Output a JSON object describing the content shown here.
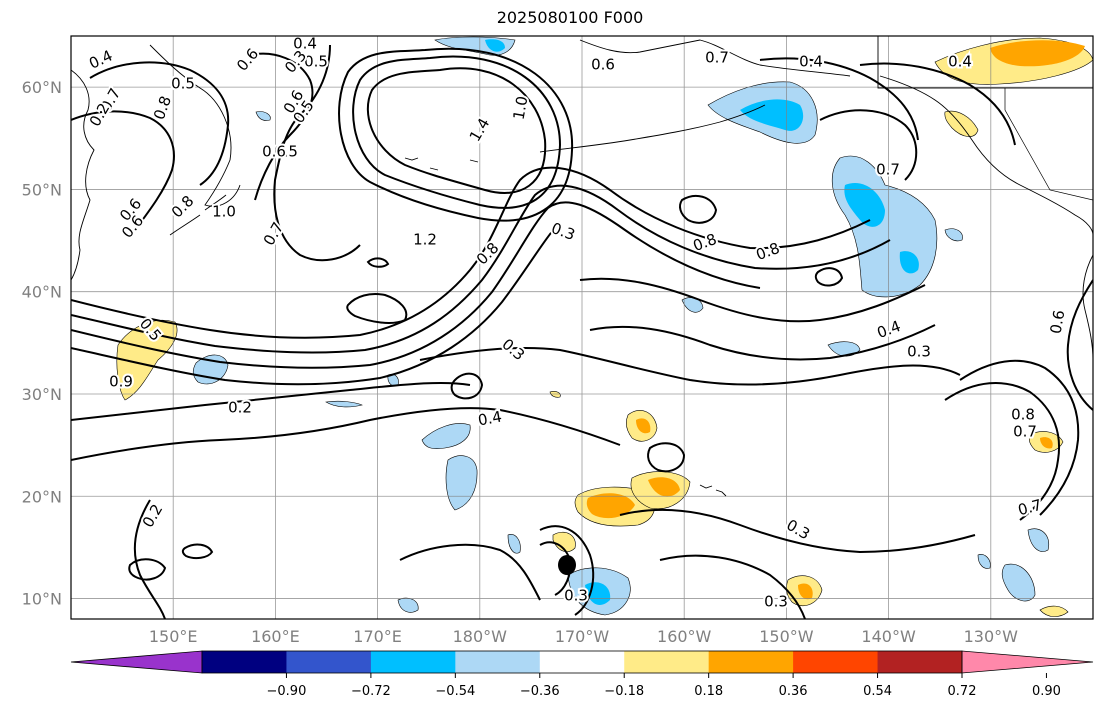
{
  "map": {
    "title": "2025080100 F000",
    "lat_labels": [
      {
        "text": "60°N",
        "lat": 60
      },
      {
        "text": "50°N",
        "lat": 50
      },
      {
        "text": "40°N",
        "lat": 40
      },
      {
        "text": "30°N",
        "lat": 30
      },
      {
        "text": "20°N",
        "lat": 20
      },
      {
        "text": "10°N",
        "lat": 10
      }
    ],
    "lon_labels": [
      {
        "text": "150°E",
        "lon": 150
      },
      {
        "text": "160°E",
        "lon": 160
      },
      {
        "text": "170°E",
        "lon": 170
      },
      {
        "text": "180°W",
        "lon": 180
      },
      {
        "text": "170°W",
        "lon": 190
      },
      {
        "text": "160°W",
        "lon": 200
      },
      {
        "text": "150°W",
        "lon": 210
      },
      {
        "text": "140°W",
        "lon": 220
      },
      {
        "text": "130°W",
        "lon": 230
      }
    ],
    "extent": {
      "lon_min": 140,
      "lon_max": 240,
      "lat_min": 8,
      "lat_max": 65
    }
  },
  "colorbar": {
    "colors": [
      "#9933cc",
      "#000080",
      "#3355cc",
      "#00bfff",
      "#add8f5",
      "#ffffff",
      "#ffeb88",
      "#ffa500",
      "#ff4500",
      "#b22222",
      "#ff88aa"
    ],
    "ticks": [
      "−0.90",
      "−0.72",
      "−0.54",
      "−0.36",
      "−0.18",
      "0.18",
      "0.36",
      "0.54",
      "0.72",
      "0.90"
    ]
  },
  "contour_labels": [
    "0.4",
    "0.5",
    "0.4",
    "0.5",
    "0.6",
    "0.7",
    "0.6",
    "0.2",
    "0.5",
    "0.8",
    "0.6",
    "0.8",
    "1.0",
    "0.7",
    "0.5",
    "0.6",
    "1.4",
    "1.0",
    "1.2",
    "0.8",
    "0.3",
    "0.3",
    "0.6",
    "0.7",
    "0.8",
    "0.8",
    "0.7",
    "0.4",
    "0.3",
    "0.4",
    "0.2",
    "0.4",
    "0.3",
    "0.6",
    "0.5",
    "0.9",
    "0.6",
    "0.2",
    "0.4",
    "0.8",
    "0.7",
    "0.7",
    "0.3",
    "0.3",
    "0.3"
  ]
}
